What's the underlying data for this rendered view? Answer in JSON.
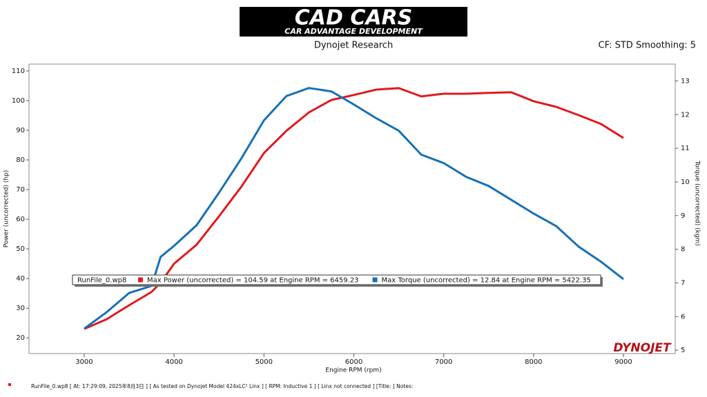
{
  "header": {
    "logo": "CAD CARS",
    "logo_subtitle": "CAR ADVANTAGE DEVELOPMENT"
  },
  "chart_data": {
    "type": "line",
    "title": "Dynojet Research",
    "subtitle": "CF: STD Smoothing: 5",
    "x_label": "Engine RPM (rpm)",
    "y_label": "Power (uncorrected) (hp)",
    "y2_label": "Torque (uncorrected) (kgm)",
    "legend_title": "RunFile_0.wp8",
    "watermark": "DYNOJET",
    "x": [
      3000,
      3250,
      3500,
      3750,
      3850,
      4000,
      4250,
      4500,
      4750,
      5000,
      5250,
      5500,
      5750,
      6000,
      6250,
      6500,
      6750,
      7000,
      7250,
      7500,
      7750,
      8000,
      8250,
      8500,
      8750,
      9000
    ],
    "series": [
      {
        "name": "Max Power (uncorrected) = 104.59 at Engine RPM = 6459.23",
        "color": "#e0191d",
        "values": [
          23,
          26.3,
          31,
          35.5,
          38.6,
          45,
          51.4,
          61,
          71,
          82.3,
          89.8,
          96,
          100.2,
          101.9,
          103.7,
          104.2,
          101.4,
          102.3,
          102.3,
          102.6,
          102.8,
          99.8,
          97.9,
          95.1,
          92.1,
          87.4
        ]
      },
      {
        "name": "Max Torque (uncorrected) = 12.84 at Engine RPM = 5422.35",
        "color": "#1570b5",
        "axis": "y2",
        "values": [
          5.64,
          6.13,
          6.7,
          6.91,
          7.77,
          8.1,
          8.71,
          9.68,
          10.7,
          11.83,
          12.55,
          12.79,
          12.69,
          12.3,
          11.89,
          11.52,
          10.81,
          10.56,
          10.15,
          9.88,
          9.47,
          9.06,
          8.69,
          8.08,
          7.63,
          7.11
        ]
      }
    ],
    "xlim": [
      2386,
      9576
    ],
    "xticks": [
      3000,
      4000,
      5000,
      6000,
      7000,
      8000,
      9000
    ],
    "ylim": [
      14.7,
      112.3
    ],
    "yticks": [
      20,
      30,
      40,
      50,
      60,
      70,
      80,
      90,
      100,
      110
    ],
    "y2lim": [
      4.9,
      13.5
    ],
    "y2ticks": [
      5,
      6,
      7,
      8,
      9,
      10,
      11,
      12,
      13
    ],
    "grid": false
  },
  "footer": {
    "text": "RunFile_0.wp8  [ At:  17:29:09,  2025年8月3日 ] [ As tested on Dynojet Model 424xLC² Linx ] [ RPM: Inductive 1 ] [ Linx not connected ] [Title:  ]  Notes:"
  }
}
